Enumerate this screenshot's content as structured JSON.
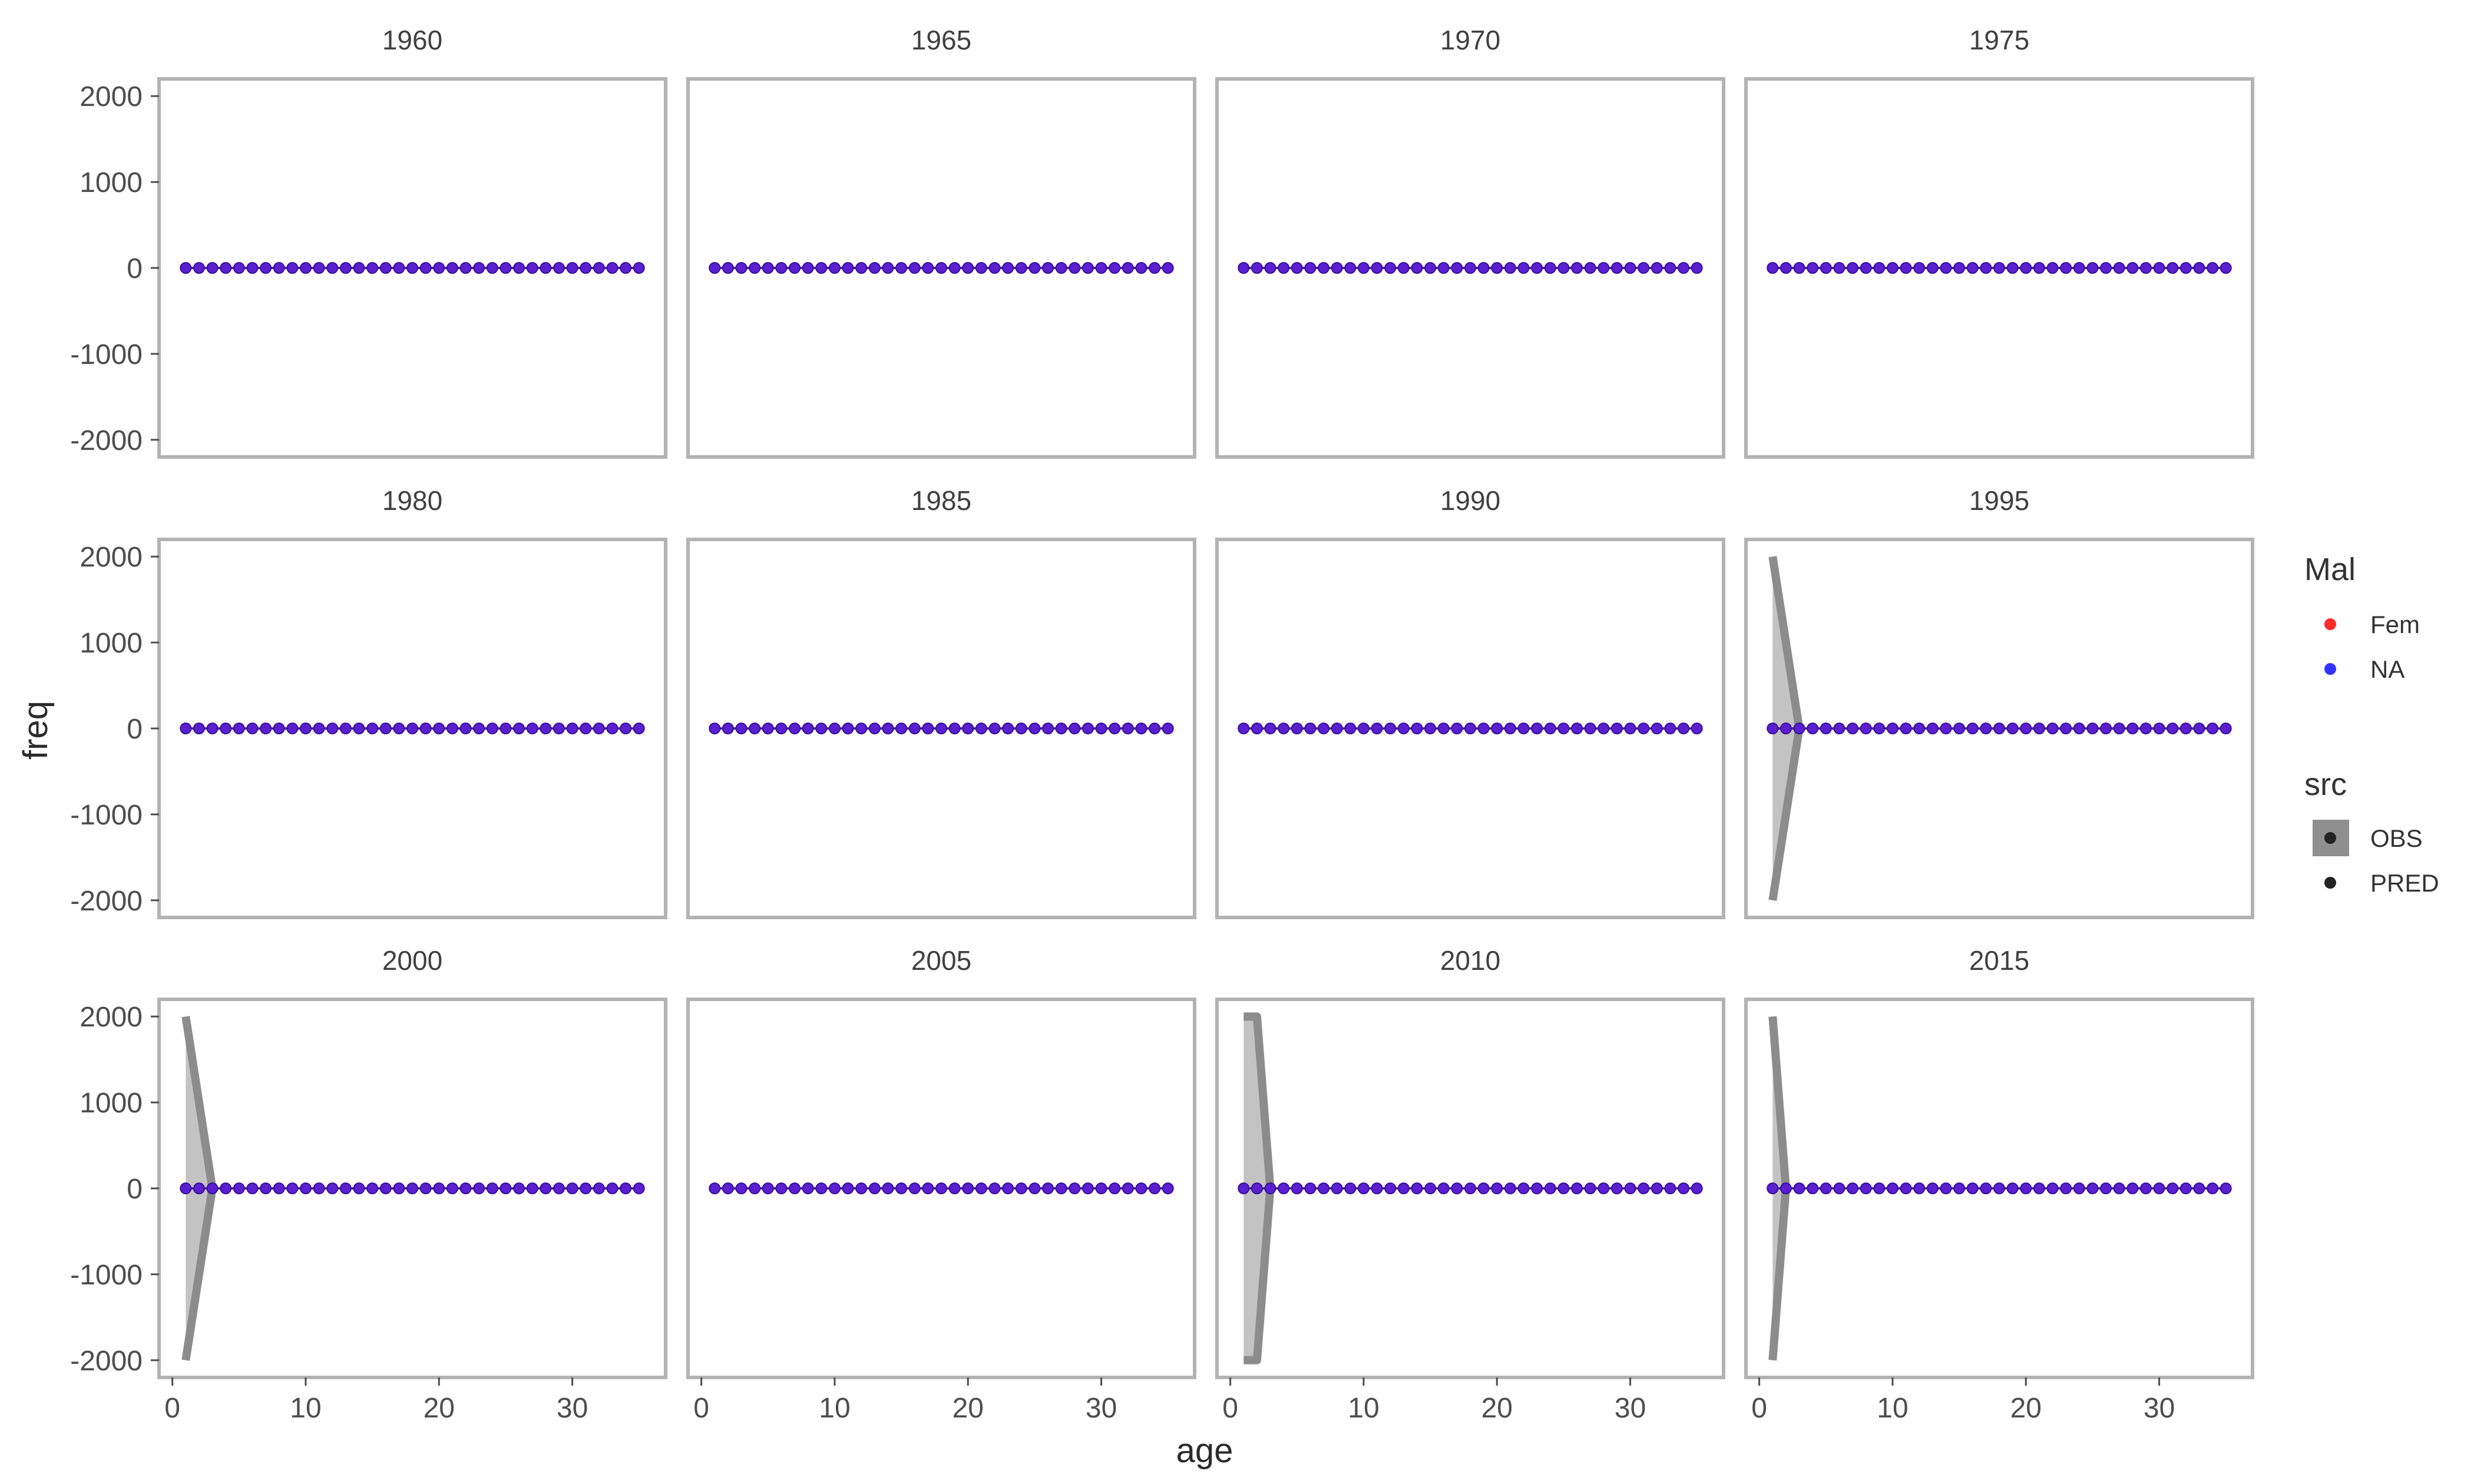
{
  "chart_data": {
    "type": "scatter",
    "facet_by": "year",
    "panels": [
      "1960",
      "1965",
      "1970",
      "1975",
      "1980",
      "1985",
      "1990",
      "1995",
      "2000",
      "2005",
      "2010",
      "2015"
    ],
    "xlabel": "age",
    "ylabel": "freq",
    "xlim": [
      -1,
      37
    ],
    "ylim": [
      -2200,
      2200
    ],
    "x_ticks": [
      0,
      10,
      20,
      30
    ],
    "y_ticks": [
      2000,
      1000,
      0,
      -1000,
      -2000
    ],
    "x": [
      1,
      2,
      3,
      4,
      5,
      6,
      7,
      8,
      9,
      10,
      11,
      12,
      13,
      14,
      15,
      16,
      17,
      18,
      19,
      20,
      21,
      22,
      23,
      24,
      25,
      26,
      27,
      28,
      29,
      30,
      31,
      32,
      33,
      34,
      35
    ],
    "points_y": 0,
    "bands": {
      "1995": [
        {
          "x": 1,
          "lo": -2000,
          "hi": 2000
        },
        {
          "x": 3,
          "lo": 0,
          "hi": 0
        }
      ],
      "2000": [
        {
          "x": 1,
          "lo": -2000,
          "hi": 2000
        },
        {
          "x": 3,
          "lo": 0,
          "hi": 0
        }
      ],
      "2010": [
        {
          "x": 1,
          "lo": -2000,
          "hi": 2000
        },
        {
          "x": 2,
          "lo": -2000,
          "hi": 2000
        },
        {
          "x": 3,
          "lo": 0,
          "hi": 0
        }
      ],
      "2015": [
        {
          "x": 1,
          "lo": -2000,
          "hi": 2000
        },
        {
          "x": 2,
          "lo": 0,
          "hi": 0
        }
      ]
    },
    "legend": {
      "position": "right",
      "groups": [
        {
          "title": "Mal",
          "items": [
            {
              "label": "Fem",
              "color": "#ff2a2a"
            },
            {
              "label": "NA",
              "color": "#3333ff"
            }
          ]
        },
        {
          "title": "src",
          "items": [
            {
              "label": "OBS"
            },
            {
              "label": "PRED"
            }
          ]
        }
      ]
    },
    "colors": {
      "points": "#5a1fd0",
      "point_stroke": "#3a0f9a",
      "band_fill": "#bdbdbd",
      "band_edge": "#8c8c8c",
      "panel_border": "#b3b3b3"
    }
  }
}
